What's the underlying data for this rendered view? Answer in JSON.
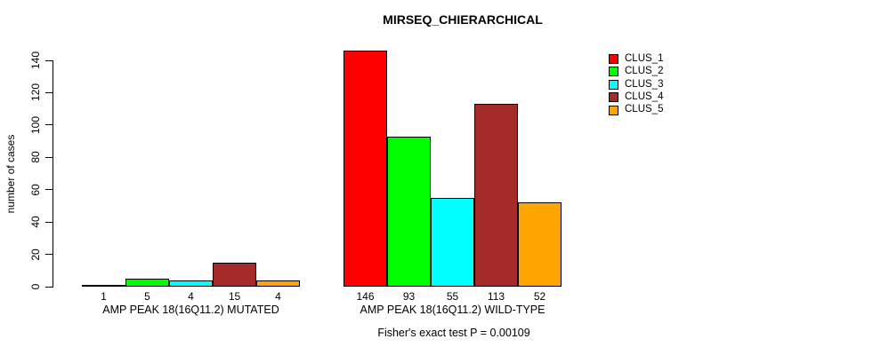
{
  "chart_data": {
    "type": "bar",
    "title": "MIRSEQ_CHIERARCHICAL",
    "ylabel": "number of cases",
    "xlabel": "",
    "ylim": [
      0,
      140
    ],
    "yticks": [
      0,
      20,
      40,
      60,
      80,
      100,
      120,
      140
    ],
    "grid": false,
    "legend_position": "top-right",
    "series": [
      {
        "name": "CLUS_1",
        "color": "#FF0000"
      },
      {
        "name": "CLUS_2",
        "color": "#00FF00"
      },
      {
        "name": "CLUS_3",
        "color": "#00FFFF"
      },
      {
        "name": "CLUS_4",
        "color": "#A52A2A"
      },
      {
        "name": "CLUS_5",
        "color": "#FFA500"
      }
    ],
    "groups": [
      {
        "label": "AMP PEAK 18(16Q11.2) MUTATED",
        "values": [
          1,
          5,
          4,
          15,
          4
        ]
      },
      {
        "label": "AMP PEAK 18(16Q11.2) WILD-TYPE",
        "values": [
          146,
          93,
          55,
          113,
          52
        ]
      }
    ],
    "annotation": "Fisher's exact test P = 0.00109"
  }
}
